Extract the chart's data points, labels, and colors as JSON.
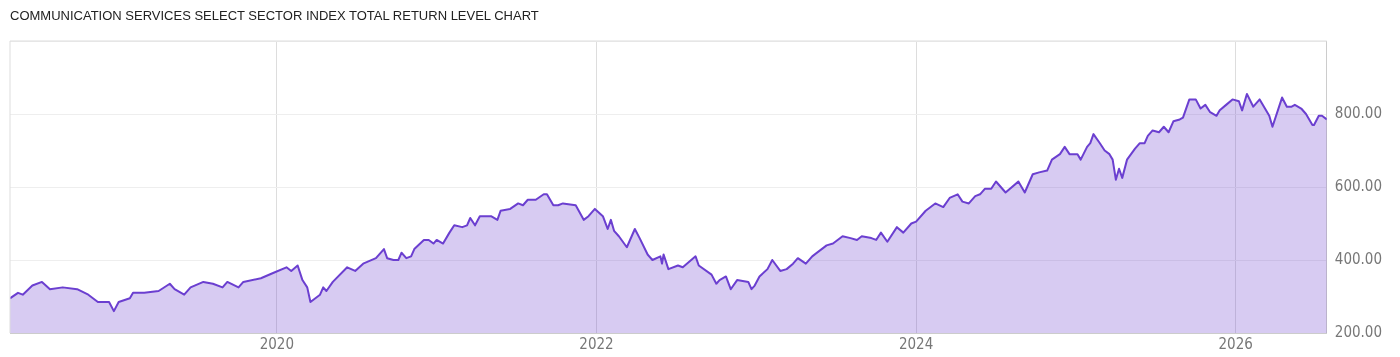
{
  "chart_data": {
    "type": "area",
    "title": "COMMUNICATION SERVICES SELECT SECTOR INDEX TOTAL RETURN LEVEL CHART",
    "x": [
      2018.33,
      2018.38,
      2018.41,
      2018.47,
      2018.53,
      2018.58,
      2018.66,
      2018.75,
      2018.82,
      2018.88,
      2018.95,
      2018.98,
      2019.01,
      2019.08,
      2019.1,
      2019.17,
      2019.26,
      2019.33,
      2019.36,
      2019.42,
      2019.46,
      2019.54,
      2019.6,
      2019.66,
      2019.69,
      2019.76,
      2019.79,
      2019.9,
      2019.98,
      2020.06,
      2020.09,
      2020.13,
      2020.16,
      2020.19,
      2020.21,
      2020.27,
      2020.29,
      2020.31,
      2020.35,
      2020.44,
      2020.49,
      2020.54,
      2020.62,
      2020.67,
      2020.69,
      2020.73,
      2020.76,
      2020.78,
      2020.81,
      2020.84,
      2020.86,
      2020.92,
      2020.95,
      2020.98,
      2021.0,
      2021.04,
      2021.08,
      2021.11,
      2021.16,
      2021.19,
      2021.21,
      2021.24,
      2021.27,
      2021.34,
      2021.38,
      2021.4,
      2021.46,
      2021.51,
      2021.54,
      2021.57,
      2021.62,
      2021.67,
      2021.69,
      2021.73,
      2021.76,
      2021.79,
      2021.87,
      2021.92,
      2021.95,
      2021.99,
      2022.04,
      2022.07,
      2022.09,
      2022.11,
      2022.14,
      2022.19,
      2022.24,
      2022.27,
      2022.32,
      2022.35,
      2022.4,
      2022.41,
      2022.42,
      2022.45,
      2022.51,
      2022.54,
      2022.62,
      2022.64,
      2022.72,
      2022.75,
      2022.77,
      2022.81,
      2022.84,
      2022.88,
      2022.95,
      2022.97,
      2022.99,
      2023.02,
      2023.07,
      2023.1,
      2023.15,
      2023.19,
      2023.23,
      2023.26,
      2023.31,
      2023.35,
      2023.44,
      2023.48,
      2023.54,
      2023.59,
      2023.63,
      2023.66,
      2023.72,
      2023.75,
      2023.78,
      2023.82,
      2023.88,
      2023.92,
      2023.97,
      2024.0,
      2024.06,
      2024.12,
      2024.17,
      2024.21,
      2024.26,
      2024.29,
      2024.33,
      2024.37,
      2024.4,
      2024.43,
      2024.47,
      2024.5,
      2024.56,
      2024.64,
      2024.68,
      2024.73,
      2024.77,
      2024.82,
      2024.85,
      2024.9,
      2024.93,
      2024.96,
      2025.01,
      2025.03,
      2025.07,
      2025.09,
      2025.11,
      2025.15,
      2025.18,
      2025.21,
      2025.23,
      2025.25,
      2025.27,
      2025.29,
      2025.32,
      2025.37,
      2025.4,
      2025.43,
      2025.45,
      2025.48,
      2025.52,
      2025.55,
      2025.58,
      2025.61,
      2025.65,
      2025.67,
      2025.71,
      2025.75,
      2025.78,
      2025.81,
      2025.84,
      2025.88,
      2025.9,
      2025.94,
      2025.98,
      2026.02,
      2026.04,
      2026.07,
      2026.11,
      2026.15,
      2026.21,
      2026.23,
      2026.29,
      2026.32,
      2026.35,
      2026.37,
      2026.41,
      2026.44,
      2026.48,
      2026.49,
      2026.52,
      2026.54,
      2026.57
    ],
    "series": [
      {
        "color": "#6b3fd0",
        "values": [
          295,
          310,
          305,
          330,
          340,
          320,
          325,
          320,
          305,
          285,
          285,
          260,
          285,
          295,
          310,
          310,
          315,
          335,
          320,
          305,
          325,
          340,
          335,
          325,
          340,
          325,
          340,
          350,
          365,
          380,
          370,
          385,
          345,
          325,
          285,
          305,
          325,
          315,
          340,
          380,
          370,
          390,
          405,
          430,
          405,
          400,
          400,
          420,
          405,
          410,
          430,
          455,
          455,
          445,
          455,
          445,
          475,
          495,
          490,
          495,
          515,
          495,
          520,
          520,
          510,
          535,
          540,
          555,
          550,
          565,
          565,
          580,
          580,
          550,
          550,
          555,
          550,
          510,
          520,
          540,
          520,
          485,
          510,
          480,
          465,
          435,
          485,
          460,
          415,
          400,
          410,
          390,
          415,
          375,
          385,
          380,
          410,
          385,
          360,
          335,
          345,
          355,
          320,
          345,
          340,
          320,
          330,
          355,
          375,
          400,
          370,
          375,
          390,
          405,
          390,
          410,
          440,
          445,
          465,
          460,
          455,
          465,
          460,
          455,
          475,
          450,
          490,
          475,
          500,
          505,
          535,
          555,
          545,
          570,
          580,
          560,
          555,
          575,
          580,
          595,
          595,
          615,
          585,
          615,
          585,
          635,
          640,
          645,
          675,
          690,
          710,
          690,
          690,
          675,
          710,
          720,
          745,
          720,
          700,
          690,
          675,
          620,
          650,
          625,
          675,
          705,
          720,
          720,
          740,
          755,
          750,
          765,
          750,
          780,
          785,
          790,
          840,
          840,
          815,
          825,
          805,
          795,
          810,
          825,
          840,
          835,
          810,
          855,
          820,
          840,
          795,
          765,
          845,
          820,
          820,
          825,
          815,
          800,
          770,
          770,
          795,
          795,
          785
        ]
      }
    ],
    "xlim": [
      2018.33,
      2026.57
    ],
    "xticks": [
      2020,
      2022,
      2024,
      2026
    ],
    "ylim": [
      200,
      1000
    ],
    "yticks": [
      {
        "value": 200,
        "label": "200.00"
      },
      {
        "value": 400,
        "label": "400.00"
      },
      {
        "value": 600,
        "label": "600.00"
      },
      {
        "value": 800,
        "label": "800.00"
      },
      {
        "value": 1000,
        "label": null
      }
    ],
    "grid": true
  }
}
